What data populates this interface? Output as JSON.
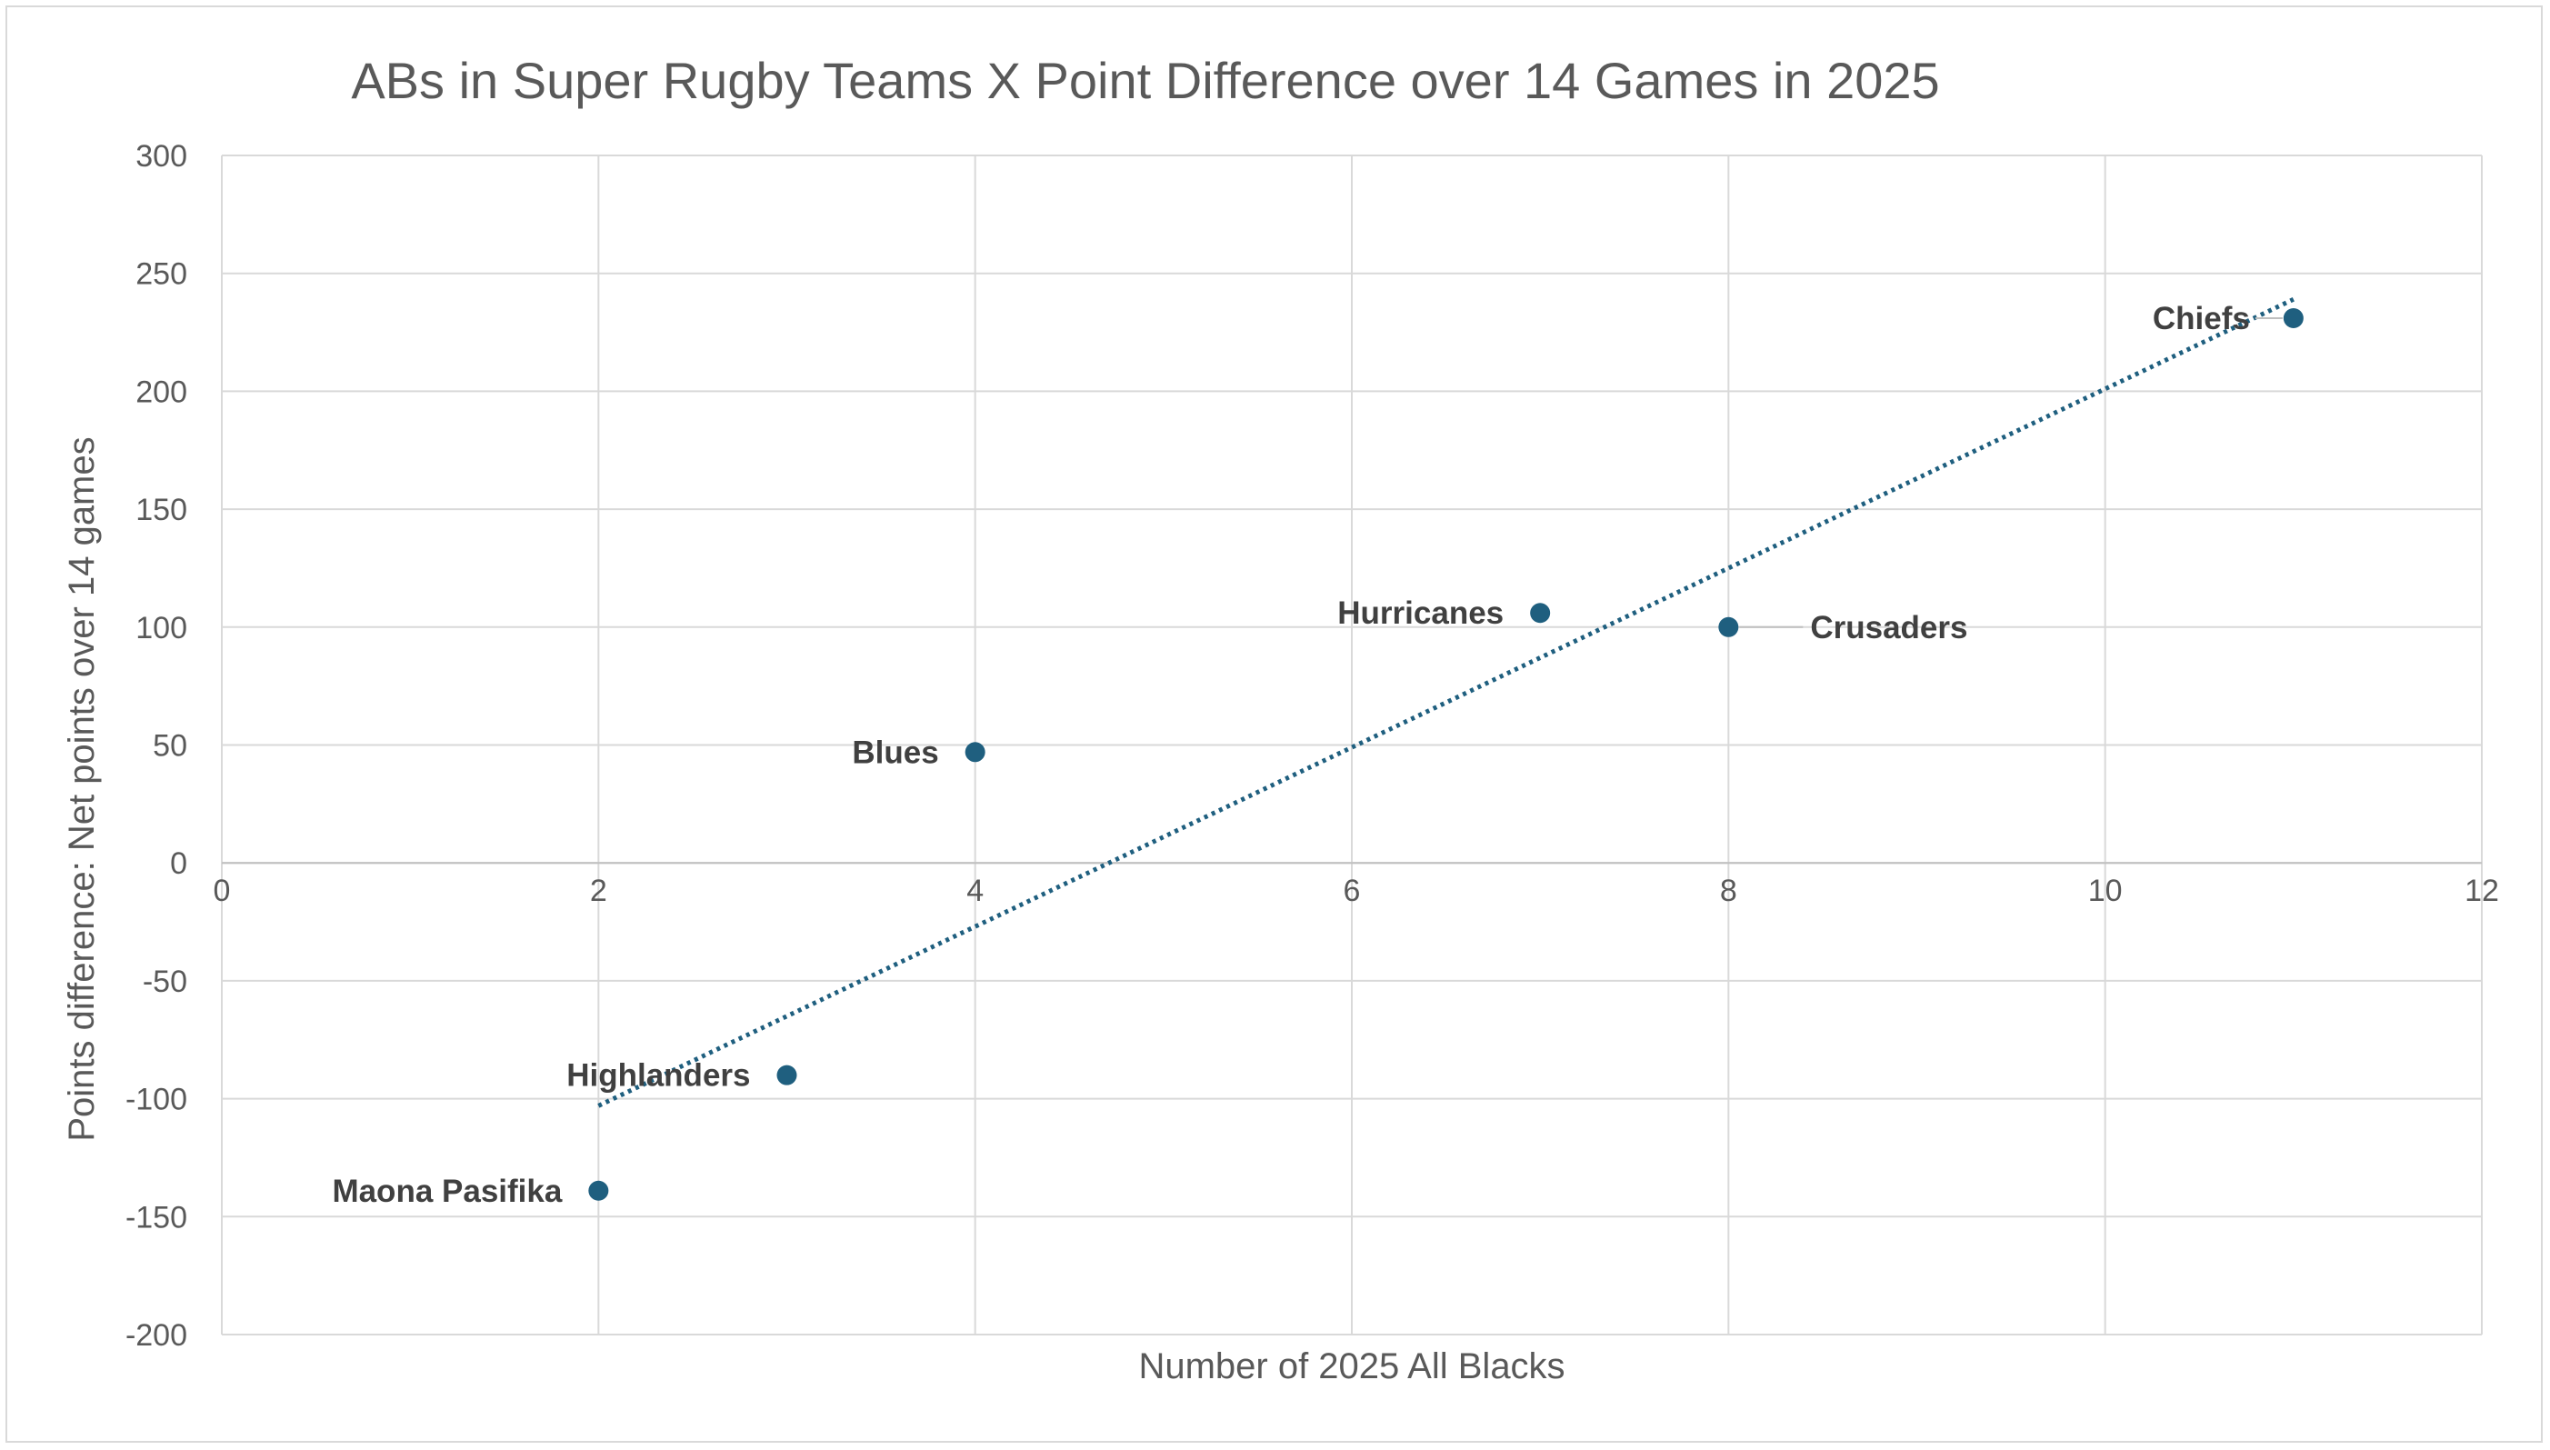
{
  "chart_data": {
    "type": "scatter",
    "title": "ABs in Super Rugby Teams X Point Difference over 14 Games in 2025",
    "xlabel": "Number of 2025 All Blacks",
    "ylabel": "Points difference: Net points over 14 games",
    "xlim": [
      0,
      12
    ],
    "ylim": [
      -200,
      300
    ],
    "x_ticks": [
      0,
      2,
      4,
      6,
      8,
      10,
      12
    ],
    "y_ticks": [
      -200,
      -150,
      -100,
      -50,
      0,
      50,
      100,
      150,
      200,
      250,
      300
    ],
    "x_tick_labels": [
      "0",
      "2",
      "4",
      "6",
      "8",
      "10",
      "12"
    ],
    "y_tick_labels": [
      "-200",
      "-150",
      "-100",
      "-50",
      "0",
      "50",
      "100",
      "150",
      "200",
      "250",
      "300"
    ],
    "grid": true,
    "legend": "none",
    "marker_color": "#1f5f7f",
    "trendline_color": "#1f5f7f",
    "trendline_style": "dotted",
    "trendline": {
      "x": [
        2,
        11
      ],
      "y": [
        -103,
        239
      ]
    },
    "points": [
      {
        "label": "Maona Pasifika",
        "x": 2,
        "y": -139,
        "label_side": "left"
      },
      {
        "label": "Highlanders",
        "x": 3,
        "y": -90,
        "label_side": "left"
      },
      {
        "label": "Blues",
        "x": 4,
        "y": 47,
        "label_side": "left"
      },
      {
        "label": "Hurricanes",
        "x": 7,
        "y": 106,
        "label_side": "left"
      },
      {
        "label": "Crusaders",
        "x": 8,
        "y": 100,
        "label_side": "right"
      },
      {
        "label": "Chiefs",
        "x": 11,
        "y": 231,
        "label_side": "left"
      }
    ]
  }
}
